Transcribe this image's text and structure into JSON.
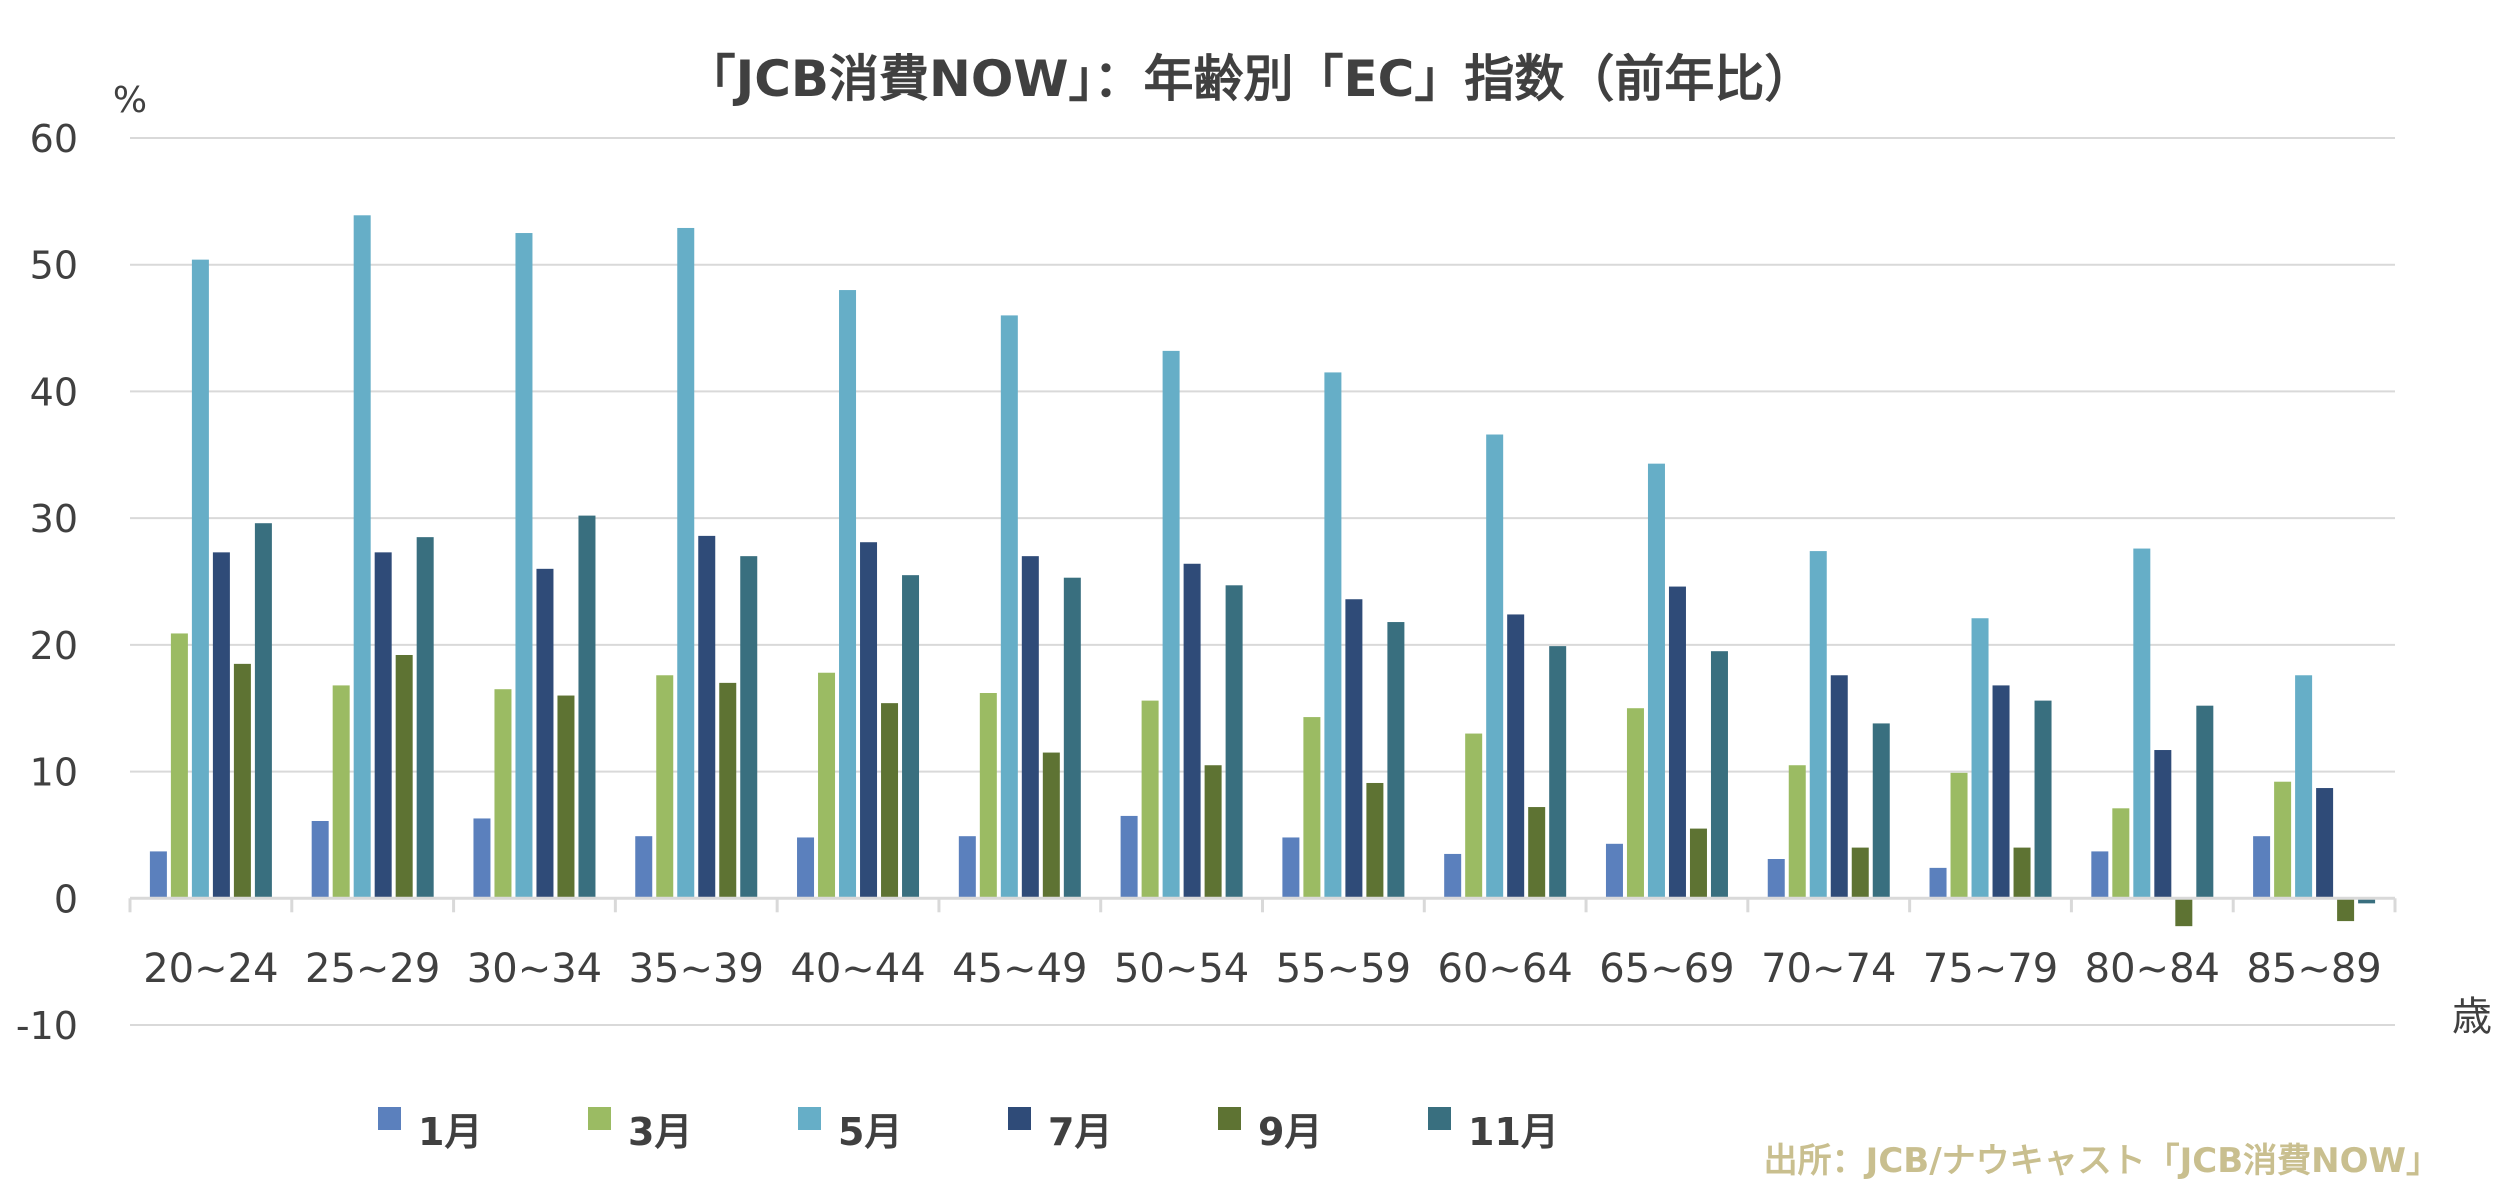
{
  "chart_data": {
    "type": "bar",
    "title": "「JCB消費NOW」：年齢別「EC」指数（前年比）",
    "y_unit": "%",
    "x_unit": "歳",
    "source": "出所：JCB/ナウキャスト「JCB消費NOW」",
    "ylim": [
      -10,
      60
    ],
    "yticks": [
      60,
      50,
      40,
      30,
      20,
      10,
      0,
      -10
    ],
    "grid": true,
    "legend_position": "bottom",
    "categories": [
      "20~24",
      "25~29",
      "30~34",
      "35~39",
      "40~44",
      "45~49",
      "50~54",
      "55~59",
      "60~64",
      "65~69",
      "70~74",
      "75~79",
      "80~84",
      "85~89"
    ],
    "series": [
      {
        "name": "1月",
        "color": "#5b80bd",
        "values": [
          3.7,
          6.1,
          6.3,
          4.9,
          4.8,
          4.9,
          6.5,
          4.8,
          3.5,
          4.3,
          3.1,
          2.4,
          3.7,
          4.9
        ]
      },
      {
        "name": "3月",
        "color": "#9bbb63",
        "values": [
          20.9,
          16.8,
          16.5,
          17.6,
          17.8,
          16.2,
          15.6,
          14.3,
          13.0,
          15.0,
          10.5,
          9.9,
          7.1,
          9.2
        ]
      },
      {
        "name": "5月",
        "color": "#66aec7",
        "values": [
          50.4,
          53.9,
          52.5,
          52.9,
          48.0,
          46.0,
          43.2,
          41.5,
          36.6,
          34.3,
          27.4,
          22.1,
          27.6,
          17.6
        ]
      },
      {
        "name": "7月",
        "color": "#2f4b78",
        "values": [
          27.3,
          27.3,
          26.0,
          28.6,
          28.1,
          27.0,
          26.4,
          23.6,
          22.4,
          24.6,
          17.6,
          16.8,
          11.7,
          8.7
        ]
      },
      {
        "name": "9月",
        "color": "#5e7333",
        "values": [
          18.5,
          19.2,
          16.0,
          17.0,
          15.4,
          11.5,
          10.5,
          9.1,
          7.2,
          5.5,
          4.0,
          4.0,
          -2.2,
          -1.8
        ]
      },
      {
        "name": "11月",
        "color": "#396f7f",
        "values": [
          29.6,
          28.5,
          30.2,
          27.0,
          25.5,
          25.3,
          24.7,
          21.8,
          19.9,
          19.5,
          13.8,
          15.6,
          15.2,
          -0.4
        ]
      }
    ]
  }
}
